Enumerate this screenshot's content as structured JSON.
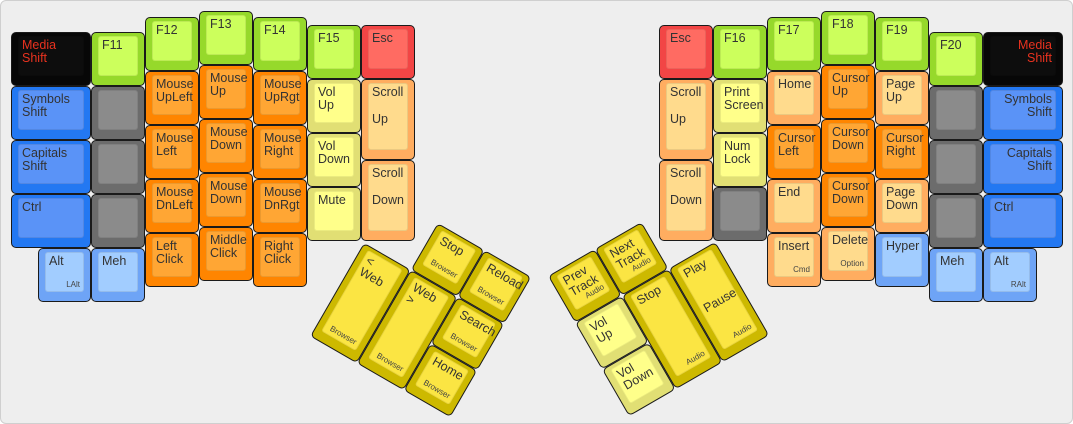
{
  "colors": {
    "black": "#070707",
    "blue": "#2378f2",
    "gray": "#6c6c6c",
    "lime": "#96d92b",
    "orange": "#ff8500",
    "light_orange": "#ffad60",
    "pale_yellow": "#ffff8a",
    "red": "#f24545",
    "light_blue": "#a2cdff",
    "yellow": "#fbe543",
    "media_text": "#e8321f"
  },
  "left": {
    "keys": [
      {
        "label": "Media\nShift",
        "color": "black"
      },
      {
        "label": "Symbols\nShift",
        "color": "blue"
      },
      {
        "label": "Capitals\nShift",
        "color": "blue"
      },
      {
        "label": "Ctrl",
        "color": "blue"
      },
      {
        "label": "Alt",
        "sub": "LAlt",
        "color": "lblue"
      },
      {
        "label": "F11",
        "color": "lime"
      },
      {
        "label": "",
        "color": "gray"
      },
      {
        "label": "",
        "color": "gray"
      },
      {
        "label": "",
        "color": "gray"
      },
      {
        "label": "Meh",
        "color": "lblue"
      },
      {
        "label": "F12",
        "color": "lime"
      },
      {
        "label": "Mouse\nUpLeft",
        "color": "orange"
      },
      {
        "label": "Mouse\nLeft",
        "color": "orange"
      },
      {
        "label": "Mouse\nDnLeft",
        "color": "orange"
      },
      {
        "label": "Left\nClick",
        "color": "orange"
      },
      {
        "label": "F13",
        "color": "lime"
      },
      {
        "label": "Mouse\nUp",
        "color": "orange"
      },
      {
        "label": "Mouse\nDown",
        "color": "orange"
      },
      {
        "label": "Mouse\nDown",
        "color": "orange"
      },
      {
        "label": "Middle\nClick",
        "color": "orange"
      },
      {
        "label": "F14",
        "color": "lime"
      },
      {
        "label": "Mouse\nUpRgt",
        "color": "orange"
      },
      {
        "label": "Mouse\nRight",
        "color": "orange"
      },
      {
        "label": "Mouse\nDnRgt",
        "color": "orange"
      },
      {
        "label": "Right\nClick",
        "color": "orange"
      },
      {
        "label": "F15",
        "color": "lime"
      },
      {
        "label": "Vol\nUp",
        "color": "pale"
      },
      {
        "label": "Vol\nDown",
        "color": "pale"
      },
      {
        "label": "Mute",
        "color": "pale"
      },
      {
        "label": "Esc",
        "color": "red"
      },
      {
        "label": "Scroll",
        "label2": "Up",
        "color": "lorange"
      },
      {
        "label": "Scroll",
        "label2": "Down",
        "color": "lorange"
      }
    ]
  },
  "right": {
    "keys": [
      {
        "label": "Esc",
        "color": "red"
      },
      {
        "label": "Scroll",
        "label2": "Up",
        "color": "lorange"
      },
      {
        "label": "Scroll",
        "label2": "Down",
        "color": "lorange"
      },
      {
        "label": "F16",
        "color": "lime"
      },
      {
        "label": "Print\nScreen",
        "color": "pale"
      },
      {
        "label": "Num\nLock",
        "color": "pale"
      },
      {
        "label": "",
        "color": "gray"
      },
      {
        "label": "F17",
        "color": "lime"
      },
      {
        "label": "Home",
        "color": "lorange"
      },
      {
        "label": "Cursor\nLeft",
        "color": "orange"
      },
      {
        "label": "End",
        "color": "lorange"
      },
      {
        "label": "Insert",
        "sub": "Cmd",
        "color": "lorange"
      },
      {
        "label": "F18",
        "color": "lime"
      },
      {
        "label": "Cursor\nUp",
        "color": "orange"
      },
      {
        "label": "Cursor\nDown",
        "color": "orange"
      },
      {
        "label": "Cursor\nDown",
        "color": "orange"
      },
      {
        "label": "Delete",
        "sub": "Option",
        "color": "lorange"
      },
      {
        "label": "F19",
        "color": "lime"
      },
      {
        "label": "Page\nUp",
        "color": "lorange"
      },
      {
        "label": "Cursor\nRight",
        "color": "orange"
      },
      {
        "label": "Page\nDown",
        "color": "lorange"
      },
      {
        "label": "Hyper",
        "color": "lblue"
      },
      {
        "label": "F20",
        "color": "lime"
      },
      {
        "label": "",
        "color": "gray"
      },
      {
        "label": "",
        "color": "gray"
      },
      {
        "label": "",
        "color": "gray"
      },
      {
        "label": "Meh",
        "color": "lblue"
      },
      {
        "label": "Media\nShift",
        "color": "black"
      },
      {
        "label": "Symbols\nShift",
        "color": "blue"
      },
      {
        "label": "Capitals\nShift",
        "color": "blue"
      },
      {
        "label": "Ctrl",
        "color": "blue"
      },
      {
        "label": "Alt",
        "sub": "RAlt",
        "color": "lblue"
      }
    ]
  },
  "left_thumb": {
    "keys": [
      {
        "label": "Stop",
        "sub": "Browser",
        "color": "yellow"
      },
      {
        "label": "Reload",
        "sub": "Browser",
        "color": "yellow"
      },
      {
        "label": "< Web",
        "sub": "Browser",
        "color": "yellow"
      },
      {
        "label": "Web >",
        "sub": "Browser",
        "color": "yellow"
      },
      {
        "label": "Search",
        "sub": "Browser",
        "color": "yellow"
      },
      {
        "label": "Home",
        "sub": "Browser",
        "color": "yellow"
      }
    ]
  },
  "right_thumb": {
    "keys": [
      {
        "label": "Prev\nTrack",
        "sub": "Audio",
        "color": "yellow"
      },
      {
        "label": "Next\nTrack",
        "sub": "Audio",
        "color": "yellow"
      },
      {
        "label": "Vol\nUp",
        "color": "pale"
      },
      {
        "label": "Stop",
        "sub": "Audio",
        "color": "yellow"
      },
      {
        "label": "Play",
        "label2": "Pause",
        "sub": "Audio",
        "color": "yellow"
      },
      {
        "label": "Vol\nDown",
        "color": "pale"
      }
    ]
  }
}
